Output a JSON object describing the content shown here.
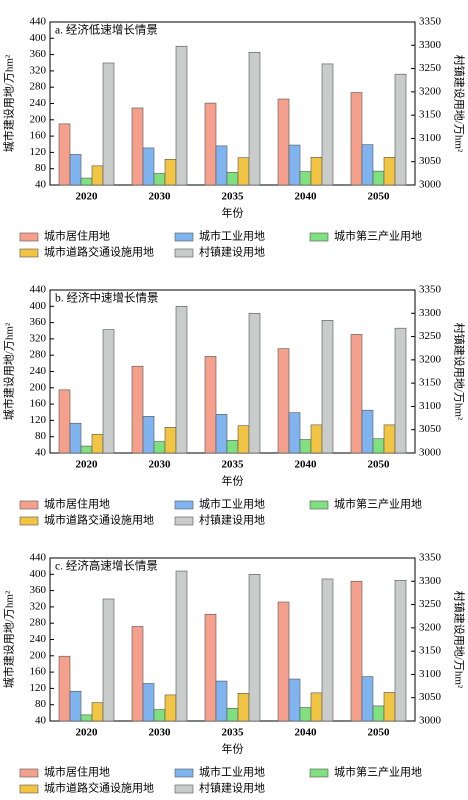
{
  "chart_data": [
    {
      "type": "bar",
      "title": "a. 经济低速增长情景",
      "x_label": "年份",
      "y_label": "城市建设用地/万hm²",
      "y2_label": "村镇建设用地/万hm²",
      "categories": [
        "2020",
        "2030",
        "2035",
        "2040",
        "2050"
      ],
      "ylim": [
        40,
        440
      ],
      "yticks": [
        40,
        80,
        120,
        160,
        200,
        240,
        280,
        320,
        360,
        400,
        440
      ],
      "y2lim": [
        3000,
        3350
      ],
      "y2ticks": [
        3000,
        3050,
        3100,
        3150,
        3200,
        3250,
        3300,
        3350
      ],
      "series": [
        {
          "name": "城市居住用地",
          "color": "#f4a08c",
          "values": [
            190,
            229,
            241,
            251,
            267
          ]
        },
        {
          "name": "城市工业用地",
          "color": "#80b4f0",
          "values": [
            115,
            131,
            136,
            138,
            139
          ]
        },
        {
          "name": "城市第三产业用地",
          "color": "#80e080",
          "values": [
            57,
            68,
            71,
            73,
            74
          ]
        },
        {
          "name": "城市道路交通设施用地",
          "color": "#f2c443",
          "values": [
            87,
            103,
            107,
            108,
            108
          ]
        },
        {
          "name": "村镇建设用地",
          "color": "#c8cccb",
          "axis": "y2",
          "values": [
            3262,
            3298,
            3285,
            3260,
            3238
          ]
        }
      ]
    },
    {
      "type": "bar",
      "title": "b. 经济中速增长情景",
      "x_label": "年份",
      "y_label": "城市建设用地/万hm²",
      "y2_label": "村镇建设用地/万hm²",
      "categories": [
        "2020",
        "2030",
        "2035",
        "2040",
        "2050"
      ],
      "ylim": [
        40,
        440
      ],
      "yticks": [
        40,
        80,
        120,
        160,
        200,
        240,
        280,
        320,
        360,
        400,
        440
      ],
      "y2lim": [
        3000,
        3350
      ],
      "y2ticks": [
        3000,
        3050,
        3100,
        3150,
        3200,
        3250,
        3300,
        3350
      ],
      "series": [
        {
          "name": "城市居住用地",
          "color": "#f4a08c",
          "values": [
            195,
            253,
            277,
            296,
            331
          ]
        },
        {
          "name": "城市工业用地",
          "color": "#80b4f0",
          "values": [
            113,
            130,
            135,
            139,
            145
          ]
        },
        {
          "name": "城市第三产业用地",
          "color": "#80e080",
          "values": [
            57,
            68,
            71,
            73,
            75
          ]
        },
        {
          "name": "城市道路交通设施用地",
          "color": "#f2c443",
          "values": [
            86,
            103,
            107,
            109,
            109
          ]
        },
        {
          "name": "村镇建设用地",
          "color": "#c8cccb",
          "axis": "y2",
          "values": [
            3265,
            3315,
            3300,
            3285,
            3268
          ]
        }
      ]
    },
    {
      "type": "bar",
      "title": "c. 经济高速增长情景",
      "x_label": "年份",
      "y_label": "城市建设用地/万hm²",
      "y2_label": "村镇建设用地/万hm²",
      "categories": [
        "2020",
        "2030",
        "2035",
        "2040",
        "2050"
      ],
      "ylim": [
        40,
        440
      ],
      "yticks": [
        40,
        80,
        120,
        160,
        200,
        240,
        280,
        320,
        360,
        400,
        440
      ],
      "y2lim": [
        3000,
        3350
      ],
      "y2ticks": [
        3000,
        3050,
        3100,
        3150,
        3200,
        3250,
        3300,
        3350
      ],
      "series": [
        {
          "name": "城市居住用地",
          "color": "#f4a08c",
          "values": [
            199,
            272,
            302,
            332,
            383
          ]
        },
        {
          "name": "城市工业用地",
          "color": "#80b4f0",
          "values": [
            113,
            132,
            138,
            143,
            149
          ]
        },
        {
          "name": "城市第三产业用地",
          "color": "#80e080",
          "values": [
            55,
            68,
            71,
            73,
            77
          ]
        },
        {
          "name": "城市道路交通设施用地",
          "color": "#f2c443",
          "values": [
            85,
            104,
            108,
            109,
            110
          ]
        },
        {
          "name": "村镇建设用地",
          "color": "#c8cccb",
          "axis": "y2",
          "values": [
            3262,
            3322,
            3315,
            3305,
            3302
          ]
        }
      ]
    }
  ]
}
